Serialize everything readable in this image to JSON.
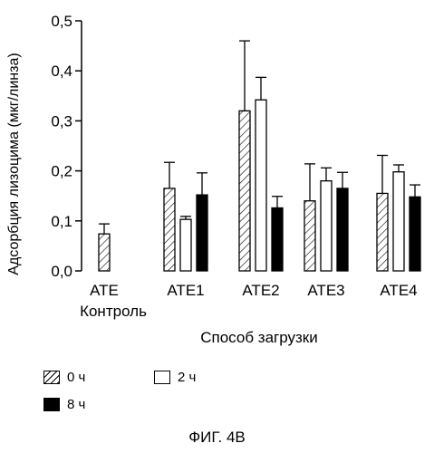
{
  "chart_data": {
    "type": "bar",
    "title": "",
    "xlabel": "Способ загрузки",
    "ylabel": "Адсорбция лизоцима (мкг/линза)",
    "ylim": [
      0,
      0.5
    ],
    "yticks": [
      "0,0",
      "0,1",
      "0,2",
      "0,3",
      "0,4",
      "0,5"
    ],
    "ytick_values": [
      0,
      0.1,
      0.2,
      0.3,
      0.4,
      0.5
    ],
    "categories": [
      "ATE",
      "ATE1",
      "ATE2",
      "ATE3",
      "ATE4"
    ],
    "category_sublabels": [
      "Контроль",
      "",
      "",
      "",
      ""
    ],
    "series": [
      {
        "name": "0 ч",
        "fill": "hatch",
        "values": [
          0.074,
          0.165,
          0.32,
          0.14,
          0.155
        ],
        "errors": [
          0.02,
          0.052,
          0.14,
          0.074,
          0.076
        ]
      },
      {
        "name": "2 ч",
        "fill": "white",
        "values": [
          null,
          0.103,
          0.342,
          0.18,
          0.198
        ],
        "errors": [
          null,
          0.006,
          0.045,
          0.026,
          0.014
        ]
      },
      {
        "name": "8 ч",
        "fill": "black",
        "values": [
          null,
          0.152,
          0.126,
          0.165,
          0.148
        ],
        "errors": [
          null,
          0.044,
          0.023,
          0.032,
          0.024
        ]
      }
    ],
    "grid": false,
    "legend_position": "bottom-left"
  },
  "figure": {
    "caption": "ФИГ. 4В"
  },
  "colors": {
    "black": "#000000",
    "white": "#ffffff"
  }
}
